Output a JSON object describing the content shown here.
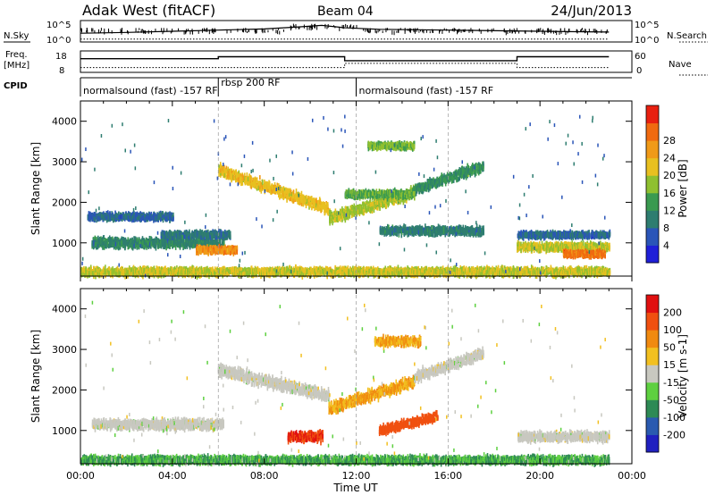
{
  "header": {
    "title": "Adak West (fitACF)",
    "beam": "Beam 04",
    "date": "24/Jun/2013"
  },
  "side_labels": {
    "nsky": "N.Sky",
    "nsearch": "N.Search",
    "freq_top": "Freq.",
    "freq_unit": "[MHz]",
    "nave": "Nave",
    "cpid": "CPID"
  },
  "noise_axis": {
    "left": [
      "10^5",
      "10^0"
    ],
    "right": [
      "10^5",
      "10^0"
    ]
  },
  "freq_axis": {
    "left": [
      "18",
      "8"
    ],
    "right": [
      "60",
      "0"
    ]
  },
  "cpid_segments": [
    {
      "label": "normalsound (fast) -157 RF",
      "start_hour": 0,
      "end_hour": 6.0
    },
    {
      "label": "rbsp 200 RF",
      "start_hour": 6.0,
      "end_hour": 12.0
    },
    {
      "label": "normalsound (fast) -157 RF",
      "start_hour": 12.0,
      "end_hour": 24.0
    }
  ],
  "time_axis": {
    "ticks": [
      "00:00",
      "04:00",
      "08:00",
      "12:00",
      "16:00",
      "20:00",
      "00:00"
    ],
    "label": "Time UT"
  },
  "power_panel": {
    "ylabel": "Slant Range [km]",
    "yticks": [
      "1000",
      "2000",
      "3000",
      "4000"
    ]
  },
  "velocity_panel": {
    "ylabel": "Slant Range [km]",
    "yticks": [
      "1000",
      "2000",
      "3000",
      "4000"
    ]
  },
  "power_colorbar": {
    "label": "Power [dB]",
    "ticks": [
      "4",
      "8",
      "12",
      "16",
      "20",
      "24",
      "28"
    ],
    "colors": [
      "#1f1fd8",
      "#2a55b8",
      "#2e7d70",
      "#3a9a50",
      "#8fc030",
      "#e8c020",
      "#f09a18",
      "#f06a10",
      "#e82010"
    ]
  },
  "velocity_colorbar": {
    "label": "Velocity [m s-1]",
    "ticks": [
      "200",
      "100",
      "50",
      "15",
      "-15",
      "-50",
      "-100",
      "-200"
    ],
    "colors": [
      "#2020c0",
      "#2a5ab0",
      "#2e8a55",
      "#5ed040",
      "#c8c8c0",
      "#f2c020",
      "#f08a10",
      "#f05010",
      "#e01010"
    ]
  },
  "chart_data": [
    {
      "type": "line",
      "title": "N.Sky / N.Search",
      "x_hours": [
        0,
        2,
        4,
        6,
        8,
        9.5,
        10.5,
        11.5,
        13,
        16,
        20,
        23
      ],
      "series": [
        {
          "name": "N.Sky",
          "values": [
            2,
            2.2,
            2.5,
            2.8,
            3.1,
            3.6,
            4.0,
            3.4,
            3.0,
            2.8,
            2.5,
            2.3
          ]
        },
        {
          "name": "N.Search",
          "values": [
            0.5,
            0.5,
            0.5,
            0.5,
            0.5,
            0.5,
            0.5,
            0.5,
            0.5,
            0.5,
            0.5,
            0.5
          ]
        }
      ]
    },
    {
      "type": "line",
      "title": "Freq. / Nave",
      "series": [
        {
          "name": "Freq.",
          "steps": [
            [
              0,
              14.5
            ],
            [
              6,
              15.5
            ],
            [
              11.5,
              13.5
            ],
            [
              19,
              15.5
            ],
            [
              23,
              15.5
            ]
          ]
        },
        {
          "name": "Nave",
          "steps": [
            [
              0,
              12
            ],
            [
              6,
              12
            ],
            [
              11.5,
              25
            ],
            [
              19,
              12
            ],
            [
              23,
              12
            ]
          ]
        }
      ]
    },
    {
      "type": "heatmap",
      "title": "Power [dB]",
      "x_range_hours": [
        0,
        24
      ],
      "y_range_km": [
        180,
        4500
      ],
      "features": [
        {
          "t0": 0.5,
          "t1": 6.2,
          "r": 1050,
          "w": 170,
          "v": 10
        },
        {
          "t0": 0.3,
          "t1": 4.0,
          "r": 1700,
          "w": 120,
          "v": 7
        },
        {
          "t0": 3.5,
          "t1": 6.5,
          "r": 1250,
          "w": 120,
          "v": 8
        },
        {
          "t0": 5.0,
          "t1": 6.8,
          "r": 880,
          "w": 130,
          "v": 24
        },
        {
          "t0": 6.0,
          "t1": 10.8,
          "r": 2850,
          "r1": 1900,
          "w": 190,
          "v": 20
        },
        {
          "t0": 10.8,
          "t1": 14.5,
          "r": 1650,
          "r1": 2300,
          "w": 190,
          "v": 17
        },
        {
          "t0": 14.5,
          "t1": 17.5,
          "r": 2350,
          "r1": 2950,
          "w": 170,
          "v": 11
        },
        {
          "t0": 11.5,
          "t1": 14.5,
          "r": 2250,
          "w": 130,
          "v": 14
        },
        {
          "t0": 13.0,
          "t1": 17.5,
          "r": 1350,
          "w": 140,
          "v": 9
        },
        {
          "t0": 19.0,
          "t1": 23.0,
          "r": 950,
          "w": 140,
          "v": 18
        },
        {
          "t0": 21.0,
          "t1": 22.8,
          "r": 780,
          "w": 110,
          "v": 26
        },
        {
          "t0": 19.0,
          "t1": 23.0,
          "r": 1250,
          "w": 100,
          "v": 7
        },
        {
          "t0": 12.5,
          "t1": 14.5,
          "r": 3450,
          "w": 110,
          "v": 15
        },
        {
          "t0": 0.0,
          "t1": 23.0,
          "r": 340,
          "w": 140,
          "v": 18
        }
      ]
    },
    {
      "type": "heatmap",
      "title": "Velocity [m s-1]",
      "x_range_hours": [
        0,
        24
      ],
      "y_range_km": [
        180,
        4500
      ],
      "features": [
        {
          "t0": 0.5,
          "t1": 6.2,
          "r": 1200,
          "w": 170,
          "v": 0
        },
        {
          "t0": 6.0,
          "t1": 10.8,
          "r": 2550,
          "r1": 1900,
          "w": 200,
          "v": 0
        },
        {
          "t0": 10.8,
          "t1": 14.5,
          "r": 1600,
          "r1": 2250,
          "w": 190,
          "v": -40
        },
        {
          "t0": 14.5,
          "t1": 17.5,
          "r": 2350,
          "r1": 2950,
          "w": 170,
          "v": 0
        },
        {
          "t0": 9.0,
          "t1": 10.5,
          "r": 900,
          "w": 170,
          "v": -150
        },
        {
          "t0": 13.0,
          "t1": 15.5,
          "r": 1050,
          "r1": 1400,
          "w": 150,
          "v": -110
        },
        {
          "t0": 19.0,
          "t1": 23.0,
          "r": 900,
          "w": 160,
          "v": 0
        },
        {
          "t0": 12.8,
          "t1": 14.8,
          "r": 3250,
          "w": 150,
          "v": -40
        },
        {
          "t0": 0.0,
          "t1": 23.0,
          "r": 320,
          "w": 130,
          "v": 30
        }
      ]
    }
  ]
}
